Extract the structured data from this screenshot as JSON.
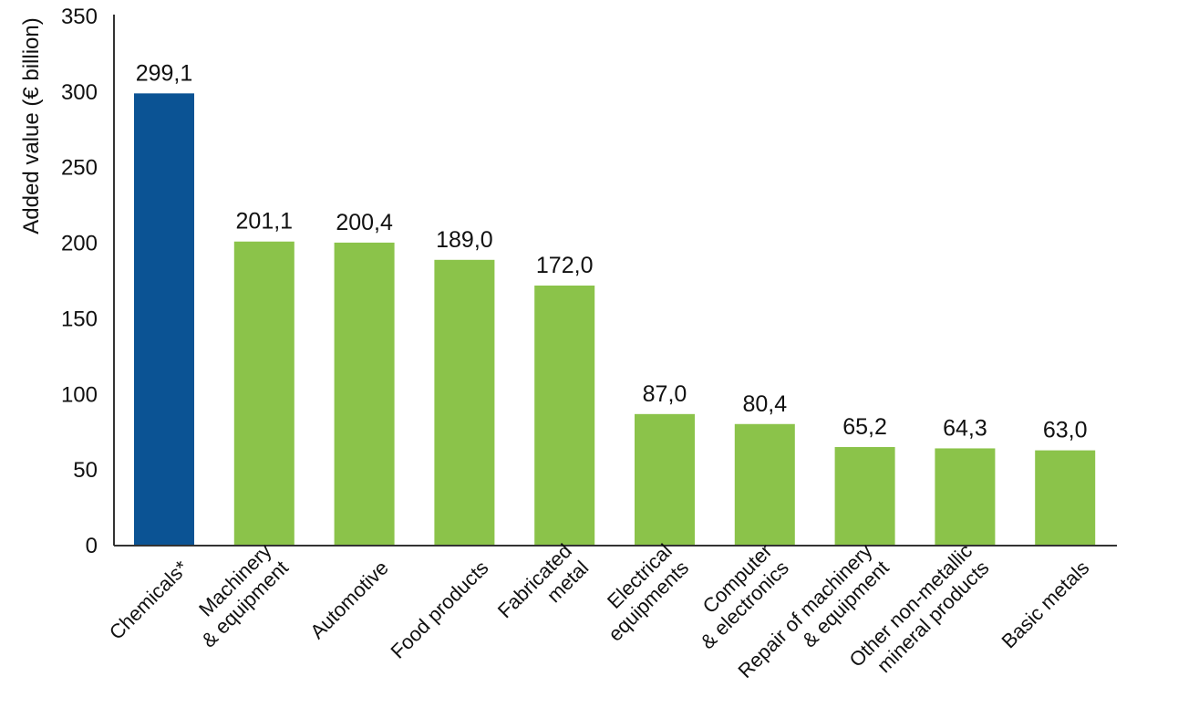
{
  "chart_data": {
    "type": "bar",
    "title": "",
    "xlabel": "",
    "ylabel": "Added value (€ billion)",
    "ylim": [
      0,
      350
    ],
    "yticks": [
      "0",
      "50",
      "100",
      "150",
      "200",
      "250",
      "300",
      "350"
    ],
    "grid": false,
    "categories": [
      [
        "Chemicals*"
      ],
      [
        "Machinery",
        "& equipment"
      ],
      [
        "Automotive"
      ],
      [
        "Food products"
      ],
      [
        "Fabricated",
        "metal"
      ],
      [
        "Electrical",
        "equipments"
      ],
      [
        "Computer",
        "& electronics"
      ],
      [
        "Repair of machinery",
        "& equipment"
      ],
      [
        "Other non-metallic",
        "mineral products"
      ],
      [
        "Basic metals"
      ]
    ],
    "values": [
      299.1,
      201.1,
      200.4,
      189.0,
      172.0,
      87.0,
      80.4,
      65.2,
      64.3,
      63.0
    ],
    "value_labels": [
      "299,1",
      "201,1",
      "200,4",
      "189,0",
      "172,0",
      "87,0",
      "80,4",
      "65,2",
      "64,3",
      "63,0"
    ],
    "colors": {
      "highlight": "#0b5394",
      "default": "#8bc34a",
      "axis": "#333333"
    },
    "highlight_index": 0
  }
}
